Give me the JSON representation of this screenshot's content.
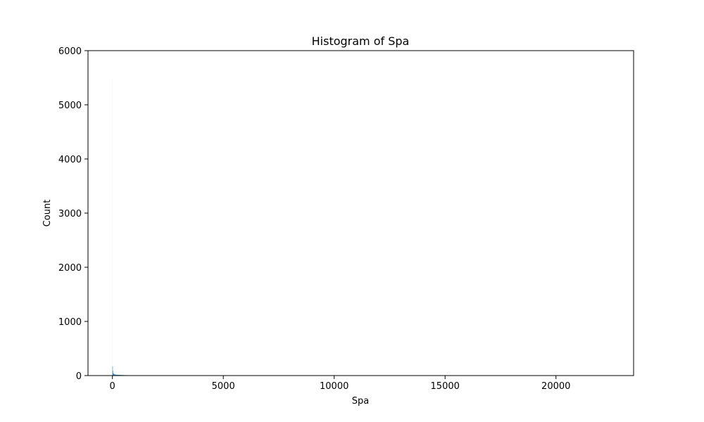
{
  "chart_data": {
    "type": "bar",
    "title": "Histogram of Spa",
    "xlabel": "Spa",
    "ylabel": "Count",
    "xlim": [
      -1100,
      23500
    ],
    "ylim": [
      0,
      6000
    ],
    "x_ticks": [
      0,
      5000,
      10000,
      15000,
      20000
    ],
    "x_tick_labels": [
      "0",
      "5000",
      "10000",
      "15000",
      "20000"
    ],
    "y_ticks": [
      0,
      1000,
      2000,
      3000,
      4000,
      5000,
      6000
    ],
    "y_tick_labels": [
      "0",
      "1000",
      "2000",
      "3000",
      "4000",
      "5000",
      "6000"
    ],
    "grid": false,
    "bar_color": "#1f77b4",
    "bins": [
      {
        "x0": -10,
        "x1": 0,
        "count": 5500
      },
      {
        "x0": 0,
        "x1": 10,
        "count": 170
      },
      {
        "x0": 10,
        "x1": 20,
        "count": 90
      },
      {
        "x0": 20,
        "x1": 40,
        "count": 50
      },
      {
        "x0": 40,
        "x1": 70,
        "count": 35
      },
      {
        "x0": 70,
        "x1": 100,
        "count": 25
      },
      {
        "x0": 100,
        "x1": 150,
        "count": 20
      },
      {
        "x0": 150,
        "x1": 200,
        "count": 15
      },
      {
        "x0": 200,
        "x1": 300,
        "count": 14
      },
      {
        "x0": 300,
        "x1": 400,
        "count": 12
      },
      {
        "x0": 400,
        "x1": 500,
        "count": 10
      },
      {
        "x0": 500,
        "x1": 600,
        "count": 8
      },
      {
        "x0": 600,
        "x1": 700,
        "count": 7
      },
      {
        "x0": 700,
        "x1": 800,
        "count": 6
      },
      {
        "x0": 800,
        "x1": 900,
        "count": 5
      },
      {
        "x0": 900,
        "x1": 1000,
        "count": 3
      },
      {
        "x0": 1000,
        "x1": 1500,
        "count": 2
      },
      {
        "x0": 1500,
        "x1": 2000,
        "count": 1
      },
      {
        "x0": 22300,
        "x1": 22400,
        "count": 1
      }
    ]
  }
}
